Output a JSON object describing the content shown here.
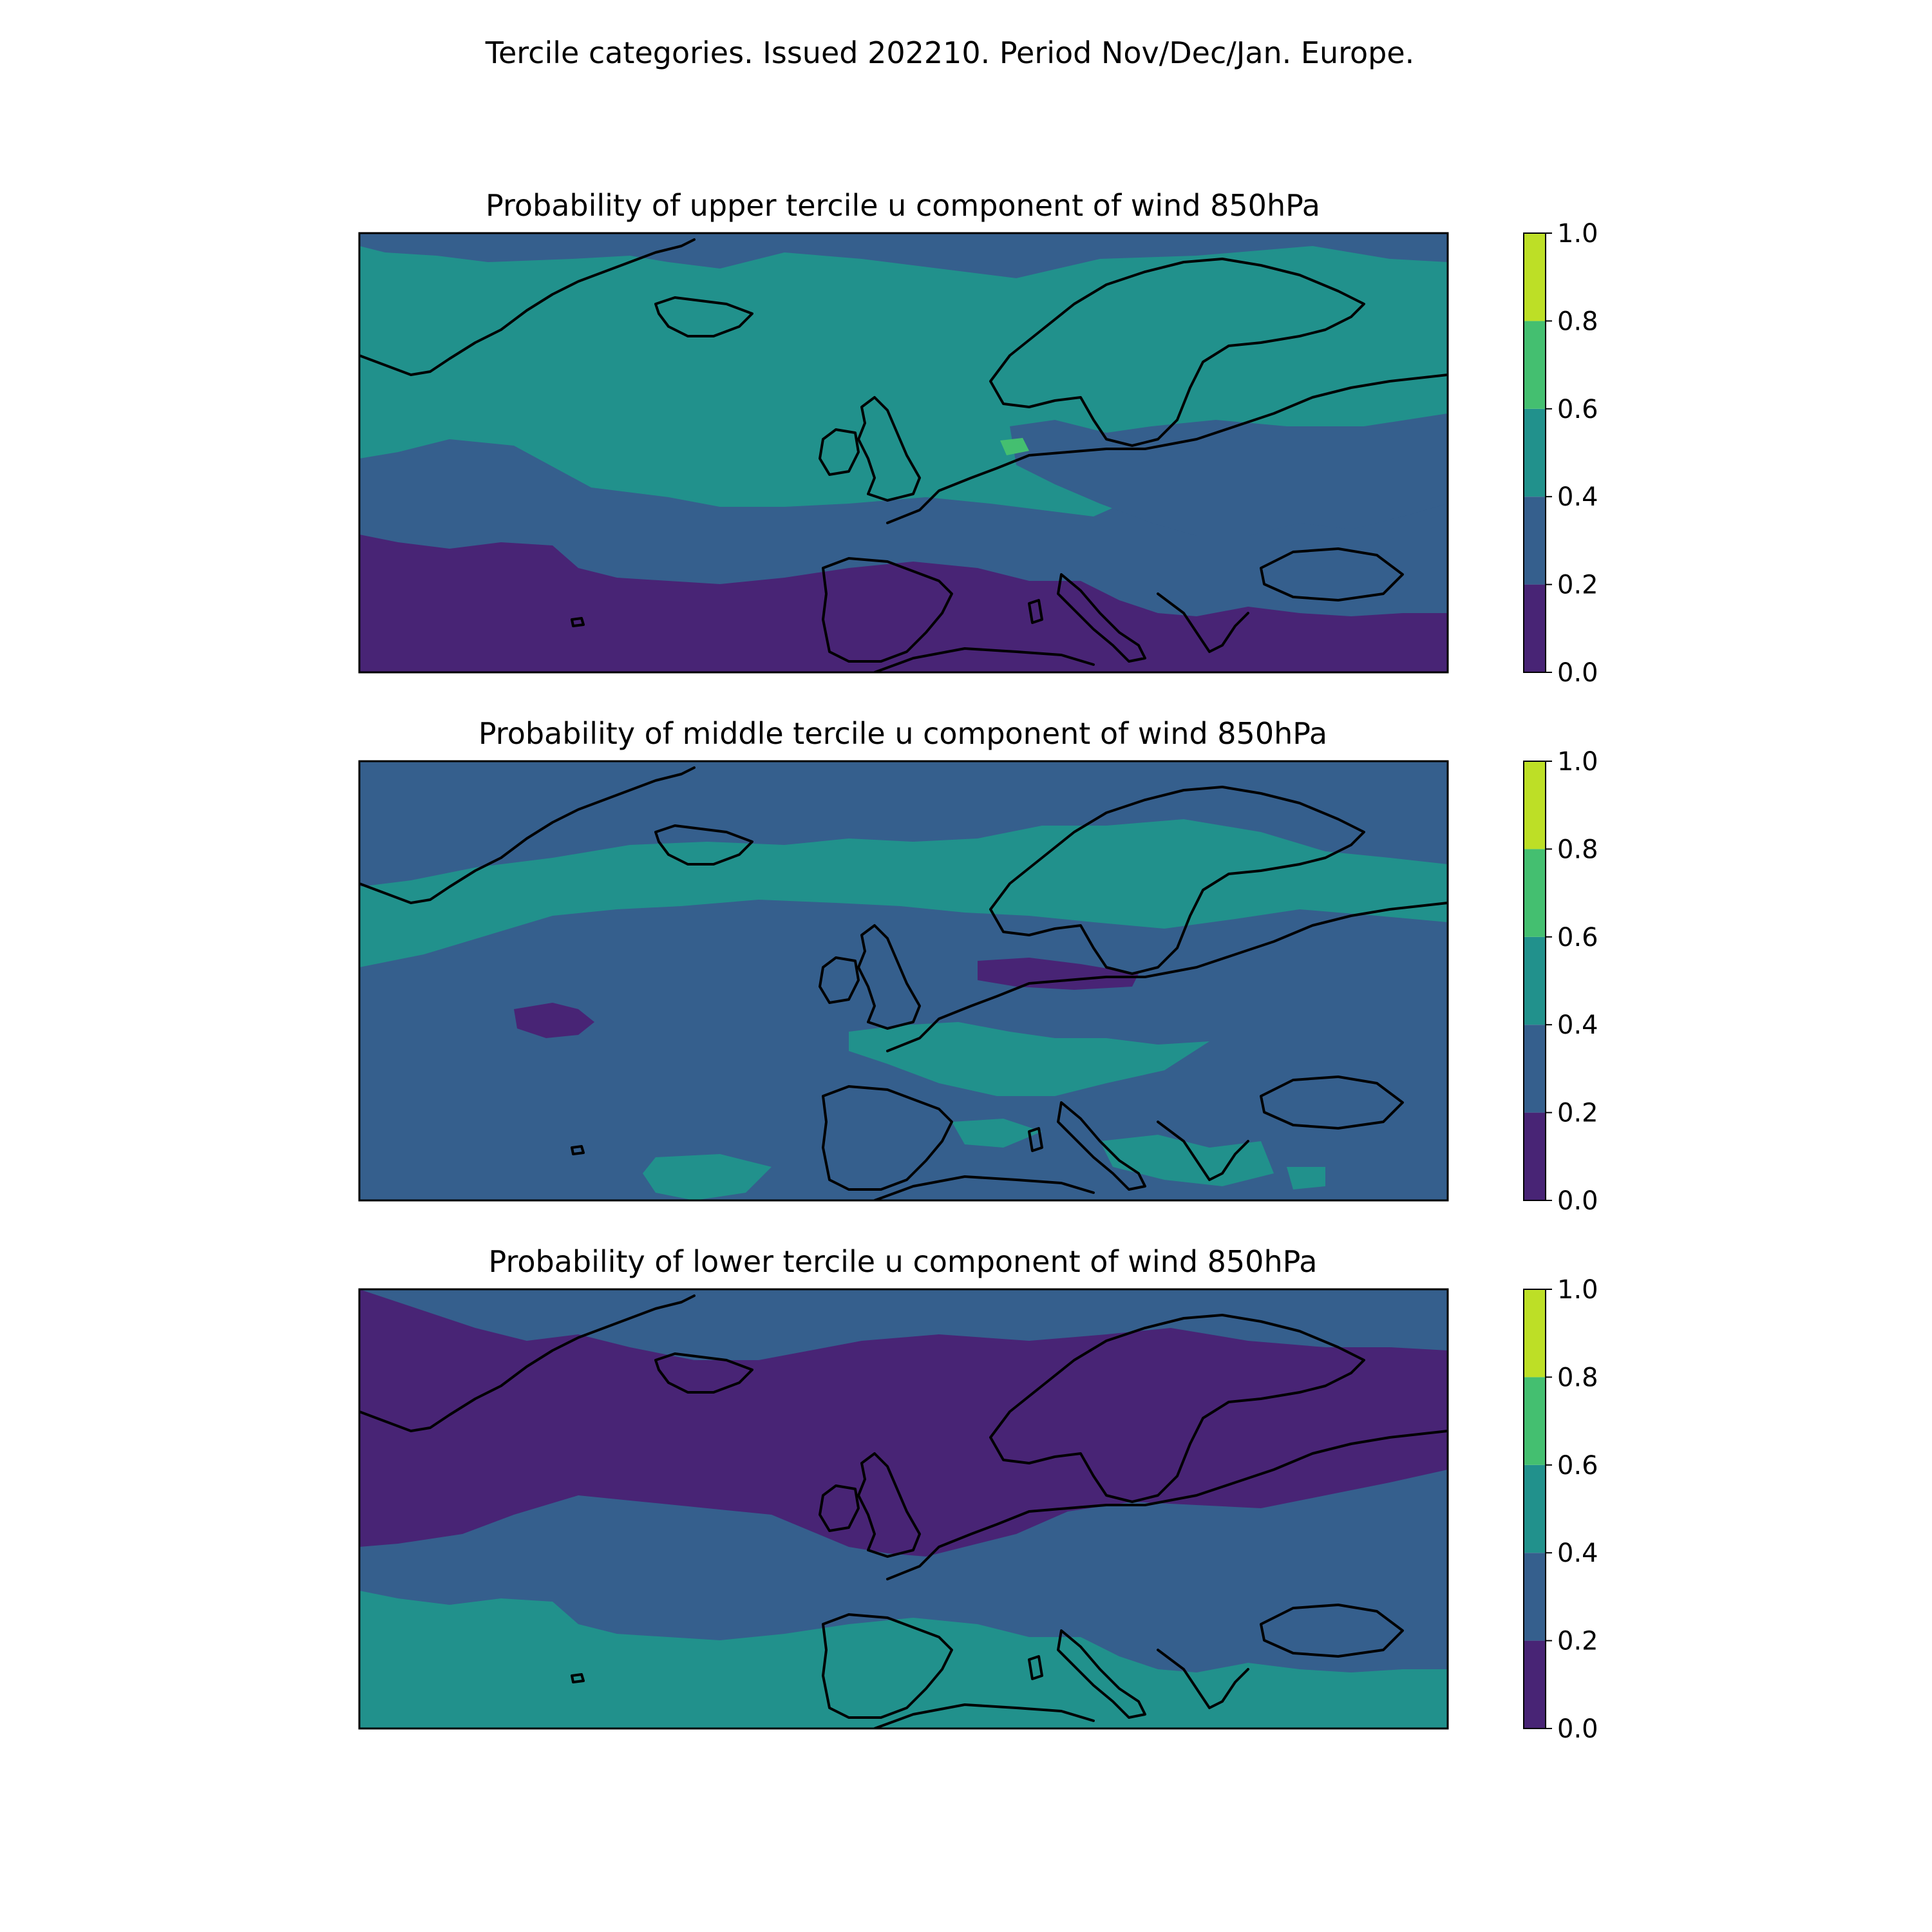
{
  "figure": {
    "title": "Tercile categories. Issued 202210. Period Nov/Dec/Jan. Europe."
  },
  "colorbar": {
    "levels": [
      0.0,
      0.2,
      0.4,
      0.6,
      0.8,
      1.0
    ],
    "tick_labels": [
      "0.0",
      "0.2",
      "0.4",
      "0.6",
      "0.8",
      "1.0"
    ],
    "colors": [
      "#472d7b",
      "#3b5f8f",
      "#21918c",
      "#2a9d7f",
      "#4ac16d",
      "#bddf26"
    ],
    "band_colors": [
      "#482475",
      "#355f8d",
      "#21918c",
      "#44bf70",
      "#bddf26"
    ]
  },
  "panels": [
    {
      "title": "Probability of upper tercile u component of wind 850hPa",
      "background_band": 2,
      "regions": [
        {
          "band": 1,
          "area": "north-atlantic-top-strip"
        },
        {
          "band": 1,
          "area": "mid-atlantic-band"
        },
        {
          "band": 0,
          "area": "subtropical-atlantic-and-mediterranean"
        },
        {
          "band": 1,
          "area": "central-europe-to-black-sea"
        },
        {
          "band": 3,
          "area": "north-sea-spot"
        }
      ]
    },
    {
      "title": "Probability of middle tercile u component of wind 850hPa",
      "background_band": 1,
      "regions": [
        {
          "band": 2,
          "area": "iceland-to-scandinavia-band"
        },
        {
          "band": 2,
          "area": "western-europe-patch"
        },
        {
          "band": 2,
          "area": "mediterranean-patches"
        },
        {
          "band": 0,
          "area": "north-germany-strip"
        },
        {
          "band": 0,
          "area": "mid-atlantic-spot"
        }
      ]
    },
    {
      "title": "Probability of lower tercile u component of wind 850hPa",
      "background_band": 1,
      "regions": [
        {
          "band": 0,
          "area": "north-atlantic-to-scandinavia-band"
        },
        {
          "band": 2,
          "area": "subtropical-atlantic-and-mediterranean"
        }
      ]
    }
  ]
}
